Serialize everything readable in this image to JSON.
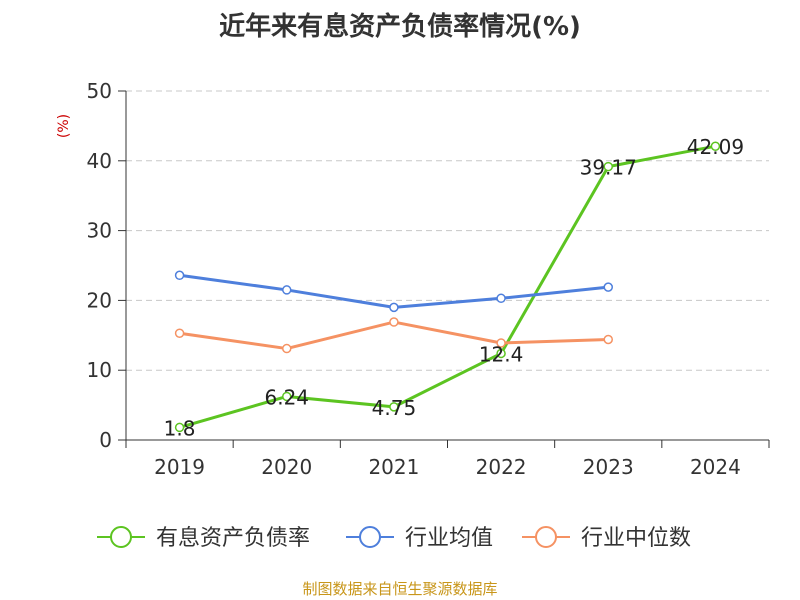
{
  "chart_data": {
    "type": "line",
    "title": "近年来有息资产负债率情况(%)",
    "ylabel": "(%)",
    "xlabel": "",
    "categories": [
      "2019",
      "2020",
      "2021",
      "2022",
      "2023",
      "2024"
    ],
    "ylim": [
      0,
      50
    ],
    "yticks": [
      0,
      10,
      20,
      30,
      40,
      50
    ],
    "grid": true,
    "legend_position": "bottom",
    "series": [
      {
        "name": "有息资产负债率",
        "color": "#5cc421",
        "values": [
          1.8,
          6.24,
          4.75,
          12.4,
          39.17,
          42.09
        ],
        "labels": [
          "1.8",
          "6.24",
          "4.75",
          "12.4",
          "39.17",
          "42.09"
        ]
      },
      {
        "name": "行业均值",
        "color": "#4e7fdc",
        "values": [
          23.6,
          21.5,
          19.0,
          20.3,
          21.9,
          null
        ]
      },
      {
        "name": "行业中位数",
        "color": "#f59263",
        "values": [
          15.3,
          13.1,
          16.9,
          13.9,
          14.4,
          null
        ]
      }
    ]
  },
  "source": "制图数据来自恒生聚源数据库"
}
